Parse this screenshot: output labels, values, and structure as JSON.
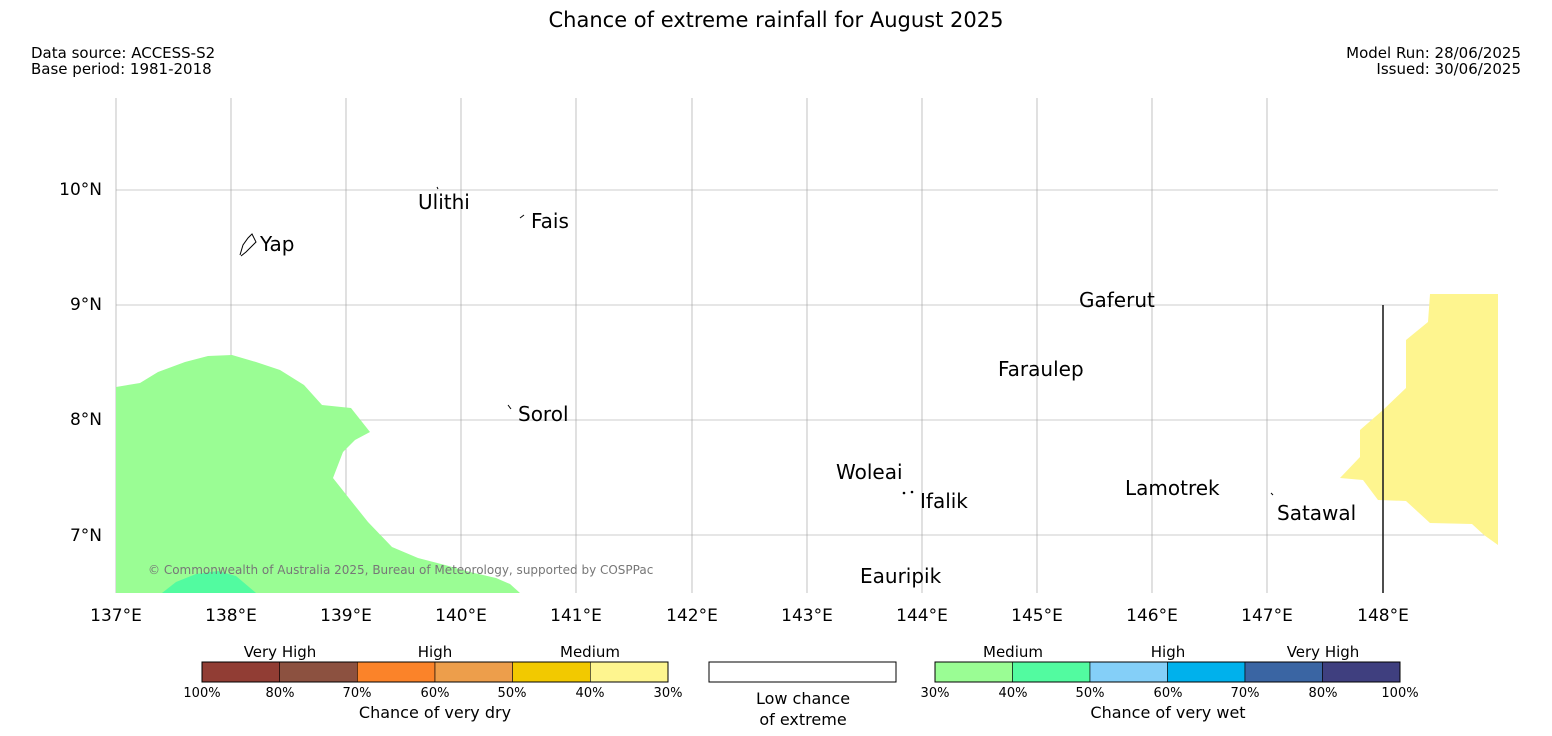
{
  "title": "Chance of extreme rainfall for August 2025",
  "meta": {
    "data_source": "Data source: ACCESS-S2",
    "base_period": "Base period: 1981-2018",
    "model_run": "Model Run: 28/06/2025",
    "issued": "Issued: 30/06/2025"
  },
  "map": {
    "lon_labels": [
      "137°E",
      "138°E",
      "139°E",
      "140°E",
      "141°E",
      "142°E",
      "143°E",
      "144°E",
      "145°E",
      "146°E",
      "147°E",
      "148°E"
    ],
    "lat_labels": [
      "10°N",
      "9°N",
      "8°N",
      "7°N"
    ],
    "places": [
      "Ulithi",
      "Fais",
      "Yap",
      "Gaferut",
      "Faraulep",
      "Sorol",
      "Woleai",
      "Ifalik",
      "Lamotrek",
      "Satawal",
      "Eauripik"
    ],
    "copyright": "© Commonwealth of Australia 2025, Bureau of Meteorology, supported by COSPPac",
    "colors": {
      "medium_wet": "#9afd94",
      "wet_40_50": "#52fba0",
      "medium_dry": "#fef58f"
    }
  },
  "legend": {
    "dry": {
      "groups": [
        "Very High",
        "High",
        "Medium"
      ],
      "ticks": [
        "100%",
        "80%",
        "70%",
        "60%",
        "50%",
        "40%",
        "30%"
      ],
      "colors": [
        "#913d34",
        "#8c5140",
        "#fb8329",
        "#ed9e4b",
        "#f2c900",
        "#fef58f"
      ],
      "caption": "Chance of very dry"
    },
    "low": {
      "caption_line1": "Low chance",
      "caption_line2": "of extreme"
    },
    "wet": {
      "groups": [
        "Medium",
        "High",
        "Very High"
      ],
      "ticks": [
        "30%",
        "40%",
        "50%",
        "60%",
        "70%",
        "80%",
        "100%"
      ],
      "colors": [
        "#9afd94",
        "#52fba0",
        "#84cff8",
        "#00b1ec",
        "#3a65a3",
        "#3f3f7f"
      ],
      "caption": "Chance of very wet"
    }
  }
}
